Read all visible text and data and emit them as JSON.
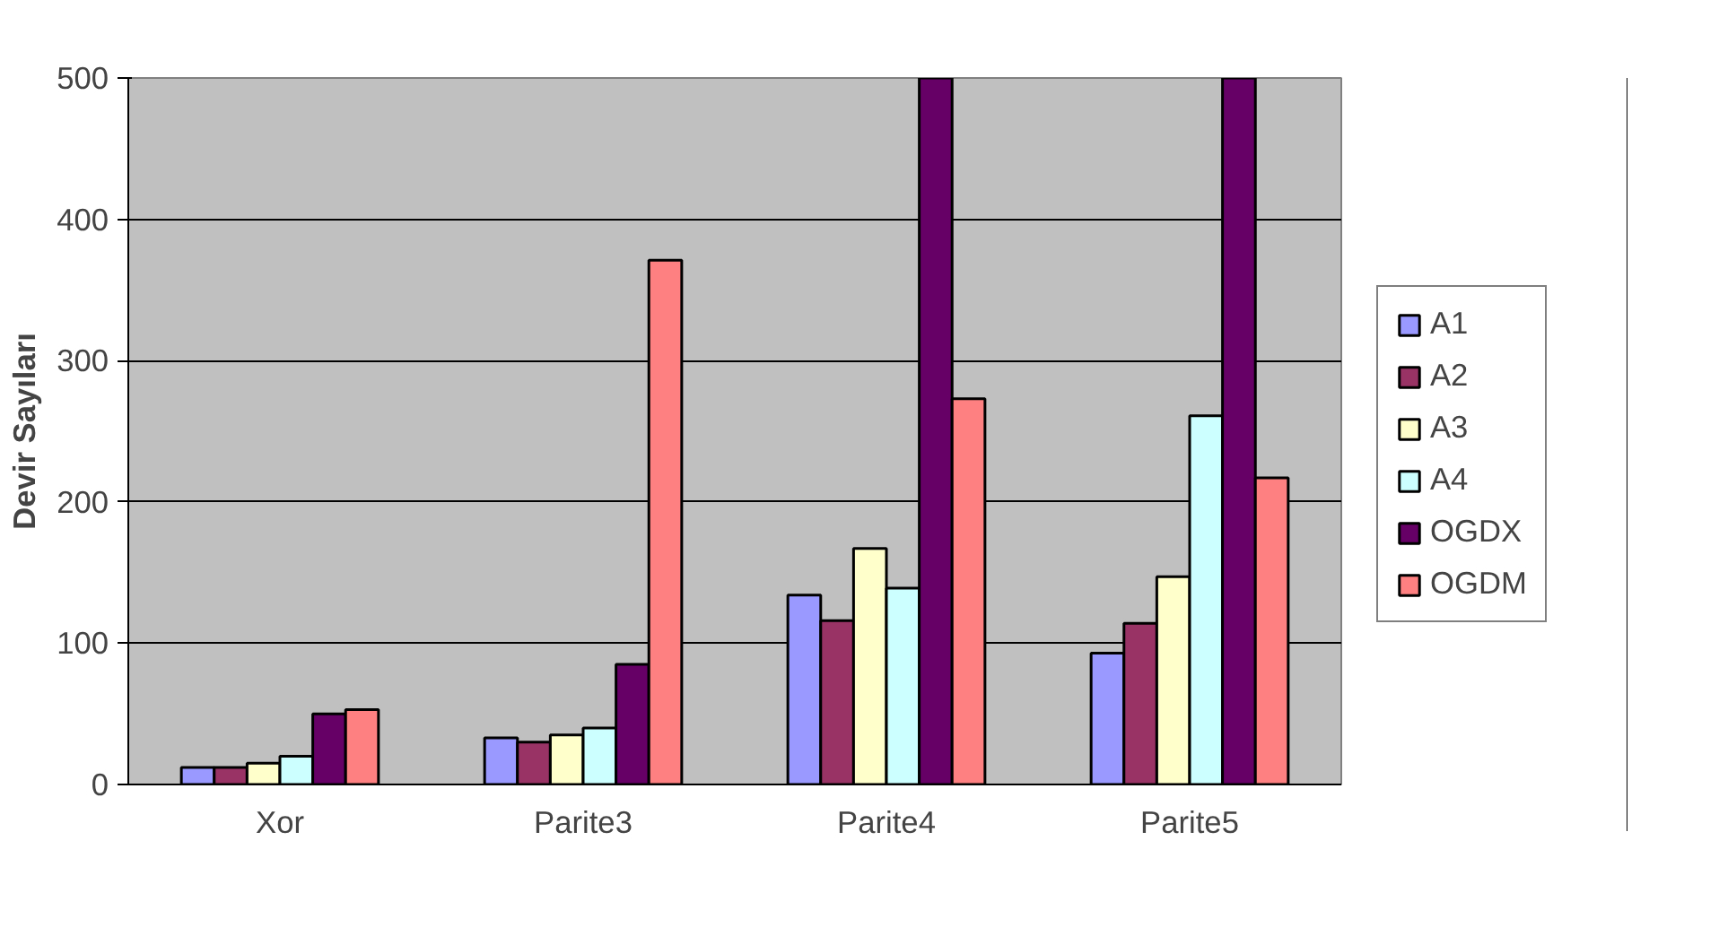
{
  "chart_data": {
    "type": "bar",
    "ylabel": "Devir Sayıları",
    "categories": [
      "Xor",
      "Parite3",
      "Parite4",
      "Parite5"
    ],
    "series": [
      {
        "name": "A1",
        "color": "#9999ff",
        "values": [
          12,
          33,
          134,
          93
        ]
      },
      {
        "name": "A2",
        "color": "#993366",
        "values": [
          12,
          30,
          116,
          114
        ]
      },
      {
        "name": "A3",
        "color": "#ffffcc",
        "values": [
          15,
          35,
          167,
          147
        ]
      },
      {
        "name": "A4",
        "color": "#ccffff",
        "values": [
          20,
          40,
          139,
          261
        ]
      },
      {
        "name": "OGDX",
        "color": "#660066",
        "values": [
          50,
          85,
          500,
          500
        ]
      },
      {
        "name": "OGDM",
        "color": "#ff8080",
        "values": [
          53,
          371,
          273,
          217
        ]
      }
    ],
    "ylim": [
      0,
      500
    ],
    "yticks": [
      0,
      100,
      200,
      300,
      400,
      500
    ],
    "grid": "y",
    "legend": "right"
  }
}
